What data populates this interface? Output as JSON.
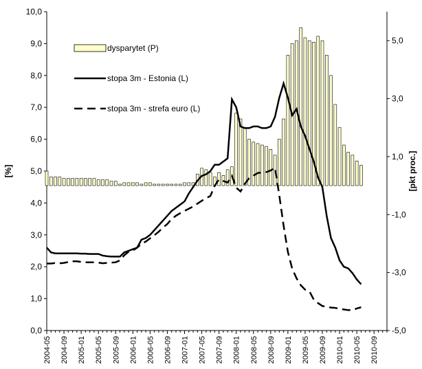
{
  "chart_data": {
    "type": "combo",
    "y_label": "[%]",
    "y2_label": "[pkt proc.]",
    "categories": [
      "2004-05",
      null,
      null,
      null,
      "2004-09",
      null,
      null,
      null,
      "2005-01",
      null,
      null,
      null,
      "2005-05",
      null,
      null,
      null,
      "2005-09",
      null,
      null,
      null,
      "2006-01",
      null,
      null,
      null,
      "2006-05",
      null,
      null,
      null,
      "2006-09",
      null,
      null,
      null,
      "2007-01",
      null,
      null,
      null,
      "2007-05",
      null,
      null,
      null,
      "2007-09",
      null,
      null,
      null,
      "2008-01",
      null,
      null,
      null,
      "2008-05",
      null,
      null,
      null,
      "2008-09",
      null,
      null,
      null,
      "2009-01",
      null,
      null,
      null,
      "2009-05",
      null,
      null,
      null,
      "2009-09",
      null,
      null,
      null,
      "2010-01",
      null,
      null,
      null,
      "2010-05",
      null,
      null,
      null,
      "2010-09",
      null,
      null,
      null
    ],
    "ylim": [
      0,
      10
    ],
    "yticks": [
      {
        "value": 0,
        "label": "0,0"
      },
      {
        "value": 1,
        "label": "1,0"
      },
      {
        "value": 2,
        "label": "2,0"
      },
      {
        "value": 3,
        "label": "3,0"
      },
      {
        "value": 4,
        "label": "4,0"
      },
      {
        "value": 5,
        "label": "5,0"
      },
      {
        "value": 6,
        "label": "6,0"
      },
      {
        "value": 7,
        "label": "7,0"
      },
      {
        "value": 8,
        "label": "8,0"
      },
      {
        "value": 9,
        "label": "9,0"
      },
      {
        "value": 10,
        "label": "10,0"
      }
    ],
    "y2lim": [
      -5,
      6
    ],
    "y2ticks": [
      {
        "value": -5,
        "label": "-5,0"
      },
      {
        "value": -3,
        "label": "-3,0"
      },
      {
        "value": -1,
        "label": "-1,0"
      },
      {
        "value": 1,
        "label": "1,0"
      },
      {
        "value": 3,
        "label": "3,0"
      },
      {
        "value": 5,
        "label": "5,0"
      }
    ],
    "series": [
      {
        "name": "dysparytet (P)",
        "type": "bar",
        "axis": "y2",
        "color": "#ffffcc",
        "values": [
          0.5,
          0.3,
          0.3,
          0.3,
          0.25,
          0.25,
          0.25,
          0.25,
          0.25,
          0.25,
          0.25,
          0.25,
          0.2,
          0.2,
          0.2,
          0.15,
          0.15,
          0.05,
          0.1,
          0.1,
          0.1,
          0.1,
          0.05,
          0.1,
          0.1,
          0.05,
          0.05,
          0.05,
          0.05,
          0.05,
          0.05,
          0.05,
          0.1,
          0.1,
          0.1,
          0.4,
          0.6,
          0.55,
          0.45,
          0.3,
          0.45,
          0.35,
          0.55,
          0.65,
          2.5,
          2.3,
          2.0,
          1.6,
          1.5,
          1.45,
          1.4,
          1.35,
          1.25,
          1.05,
          1.6,
          2.3,
          4.5,
          4.9,
          5.0,
          5.45,
          5.1,
          5.0,
          4.95,
          5.15,
          5.0,
          4.5,
          3.8,
          2.8,
          2.0,
          1.4,
          1.15,
          1.05,
          0.85,
          0.7,
          null,
          null,
          null,
          null,
          null,
          null
        ]
      },
      {
        "name": "stopa 3m - Estonia (L)",
        "type": "line",
        "color": "#000000",
        "dashed": false,
        "values": [
          2.6,
          2.45,
          2.42,
          2.42,
          2.42,
          2.42,
          2.42,
          2.42,
          2.41,
          2.41,
          2.4,
          2.4,
          2.4,
          2.35,
          2.33,
          2.32,
          2.32,
          2.32,
          2.45,
          2.5,
          2.55,
          2.6,
          2.85,
          2.9,
          3.0,
          3.15,
          3.3,
          3.45,
          3.6,
          3.75,
          3.85,
          3.95,
          4.05,
          4.3,
          4.5,
          4.7,
          4.85,
          4.9,
          5.0,
          5.2,
          5.2,
          5.3,
          5.4,
          7.25,
          7.0,
          6.4,
          6.35,
          6.35,
          6.4,
          6.4,
          6.35,
          6.35,
          6.4,
          6.7,
          7.3,
          7.75,
          7.3,
          6.75,
          6.95,
          6.4,
          6.1,
          5.7,
          5.3,
          4.8,
          4.5,
          3.6,
          2.9,
          2.6,
          2.2,
          2.0,
          1.95,
          1.8,
          1.6,
          1.45,
          null,
          null,
          null,
          null,
          null,
          null
        ]
      },
      {
        "name": "stopa 3m - strefa euro (L)",
        "type": "line",
        "color": "#000000",
        "dashed": true,
        "values": [
          2.1,
          2.1,
          2.12,
          2.11,
          2.12,
          2.15,
          2.17,
          2.17,
          2.15,
          2.14,
          2.14,
          2.14,
          2.13,
          2.11,
          2.12,
          2.13,
          2.14,
          2.2,
          2.36,
          2.47,
          2.51,
          2.6,
          2.72,
          2.79,
          2.89,
          2.99,
          3.1,
          3.23,
          3.34,
          3.5,
          3.6,
          3.68,
          3.75,
          3.82,
          3.89,
          3.98,
          4.07,
          4.15,
          4.22,
          4.54,
          4.74,
          4.69,
          4.64,
          4.85,
          4.48,
          4.36,
          4.6,
          4.78,
          4.86,
          4.94,
          4.96,
          4.97,
          5.02,
          5.11,
          4.24,
          3.29,
          2.46,
          1.94,
          1.64,
          1.42,
          1.28,
          1.23,
          0.97,
          0.86,
          0.77,
          0.74,
          0.72,
          0.71,
          0.68,
          0.66,
          0.64,
          0.64,
          0.69,
          0.73,
          null,
          null,
          null,
          null,
          null,
          null
        ]
      }
    ]
  }
}
